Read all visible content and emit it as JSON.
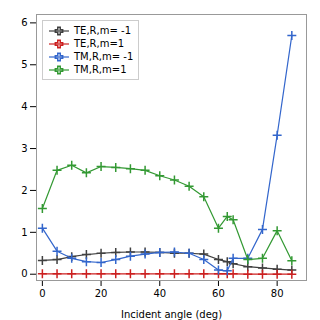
{
  "chart_data": {
    "type": "line",
    "xlabel": "Incident angle (deg)",
    "x": [
      0,
      5,
      10,
      15,
      20,
      25,
      30,
      35,
      40,
      45,
      50,
      55,
      60,
      63,
      65,
      70,
      75,
      80,
      85
    ],
    "series": [
      {
        "name": "TE,R,m= -1",
        "color": "#404040",
        "values": [
          0.33,
          0.35,
          0.42,
          0.47,
          0.5,
          0.52,
          0.53,
          0.53,
          0.52,
          0.5,
          0.5,
          0.48,
          0.35,
          0.3,
          0.25,
          0.18,
          0.15,
          0.12,
          0.1
        ]
      },
      {
        "name": "TE,R,m=1",
        "color": "#cc2020",
        "values": [
          0.01,
          0.01,
          0.01,
          0.01,
          0.01,
          0.01,
          0.01,
          0.01,
          0.01,
          0.01,
          0.01,
          0.01,
          0.01,
          0.01,
          0.01,
          0.0,
          0.0,
          0.0,
          0.0
        ]
      },
      {
        "name": "TM,R,m= -1",
        "color": "#3366cc",
        "values": [
          1.1,
          0.55,
          0.38,
          0.3,
          0.28,
          0.35,
          0.43,
          0.48,
          0.52,
          0.53,
          0.5,
          0.35,
          0.1,
          0.08,
          0.38,
          0.38,
          1.07,
          3.32,
          5.7
        ]
      },
      {
        "name": "TM,R,m=1",
        "color": "#339933",
        "values": [
          1.57,
          2.48,
          2.6,
          2.42,
          2.57,
          2.55,
          2.52,
          2.48,
          2.35,
          2.25,
          2.1,
          1.85,
          1.1,
          1.38,
          1.3,
          0.35,
          0.38,
          1.04,
          0.32
        ]
      }
    ],
    "xlim": [
      -2,
      90
    ],
    "ylim": [
      -0.15,
      6.2
    ],
    "xticks": [
      0,
      20,
      40,
      60,
      80
    ],
    "yticks": [
      0,
      1,
      2,
      3,
      4,
      5,
      6
    ],
    "marker": "plus",
    "grid": false,
    "legend": "upper left"
  }
}
